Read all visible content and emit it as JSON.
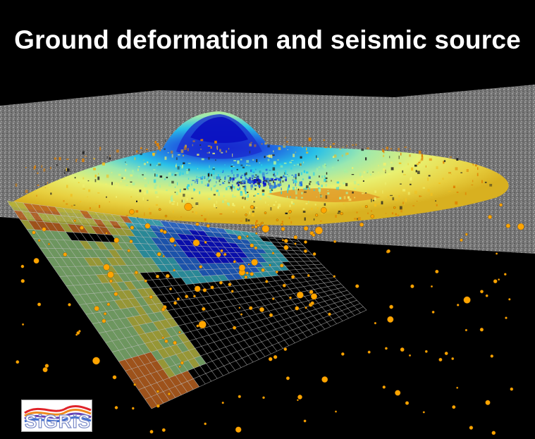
{
  "title": "Ground deformation and seismic source",
  "logo": {
    "text": "SiGRiS",
    "colors": [
      "#e0242a",
      "#f08a1e",
      "#6a3fb4",
      "#3f6fd0"
    ]
  },
  "scene": {
    "background": "#000000",
    "terrain_color": "#8a8a8a",
    "deformation_colormap": [
      "#0a10c8",
      "#1f6fe0",
      "#2ad0e8",
      "#a8f0a0",
      "#f0f070",
      "#f0c020",
      "#e08000"
    ],
    "fault_grid_colors": [
      "#0a10c8",
      "#2060c8",
      "#30a0b0",
      "#80b070",
      "#b0b040",
      "#b86020"
    ],
    "earthquake_color": "#ffa500"
  }
}
